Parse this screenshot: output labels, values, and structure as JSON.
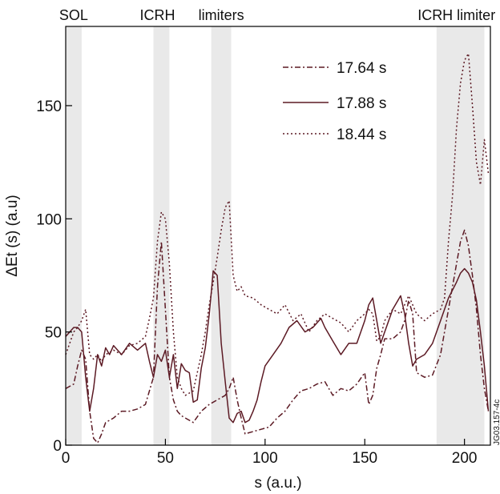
{
  "chart_data": {
    "type": "line",
    "title": "",
    "xlabel": "s (a.u.)",
    "ylabel": "ΔEt (s) (a.u)",
    "xlim": [
      0,
      213
    ],
    "ylim": [
      0,
      185
    ],
    "x_ticks": [
      0,
      50,
      100,
      150,
      200
    ],
    "y_ticks": [
      0,
      50,
      100,
      150
    ],
    "grid": false,
    "legend_position": "top-right",
    "colors": {
      "line": "#5c1a24",
      "shade": "#e9e9e9",
      "axis": "#000000"
    },
    "region_labels": [
      {
        "text": "SOL",
        "x": 4
      },
      {
        "text": "ICRH",
        "x": 46
      },
      {
        "text": "limiters",
        "x": 78
      },
      {
        "text": "ICRH limiter",
        "x": 196
      }
    ],
    "shaded_regions": [
      [
        0,
        8
      ],
      [
        44,
        52
      ],
      [
        73,
        83
      ],
      [
        186,
        210
      ]
    ],
    "stamp": "JG03.157-4c",
    "series": [
      {
        "name": "17.64 s",
        "style": "dashdot",
        "x": [
          0,
          2,
          4,
          6,
          8,
          10,
          12,
          14,
          16,
          18,
          20,
          24,
          28,
          32,
          36,
          40,
          44,
          46,
          48,
          50,
          52,
          54,
          56,
          58,
          60,
          64,
          68,
          72,
          76,
          80,
          82,
          84,
          86,
          88,
          90,
          94,
          98,
          102,
          106,
          110,
          114,
          118,
          122,
          126,
          130,
          134,
          138,
          142,
          146,
          150,
          152,
          154,
          156,
          158,
          160,
          164,
          168,
          170,
          172,
          174,
          176,
          180,
          184,
          188,
          192,
          196,
          198,
          200,
          202,
          204,
          206,
          208,
          210,
          212
        ],
        "y": [
          25,
          26,
          27,
          35,
          42,
          38,
          15,
          3,
          1,
          5,
          10,
          12,
          15,
          15,
          16,
          18,
          30,
          70,
          90,
          60,
          30,
          20,
          15,
          13,
          12,
          10,
          15,
          18,
          20,
          22,
          25,
          30,
          20,
          12,
          5,
          6,
          7,
          8,
          12,
          15,
          20,
          24,
          25,
          27,
          28,
          22,
          25,
          24,
          27,
          32,
          18,
          22,
          34,
          40,
          47,
          47,
          50,
          55,
          64,
          58,
          32,
          30,
          31,
          40,
          60,
          80,
          90,
          95,
          88,
          75,
          60,
          40,
          25,
          15
        ]
      },
      {
        "name": "17.88 s",
        "style": "solid",
        "x": [
          0,
          2,
          4,
          6,
          8,
          10,
          12,
          14,
          16,
          18,
          20,
          22,
          24,
          28,
          32,
          36,
          40,
          42,
          44,
          46,
          48,
          50,
          52,
          54,
          56,
          58,
          60,
          62,
          64,
          66,
          68,
          70,
          72,
          74,
          76,
          78,
          80,
          82,
          84,
          86,
          88,
          90,
          92,
          94,
          96,
          98,
          100,
          104,
          108,
          112,
          116,
          120,
          124,
          128,
          130,
          134,
          138,
          142,
          146,
          150,
          152,
          154,
          156,
          158,
          160,
          164,
          168,
          170,
          172,
          174,
          176,
          180,
          184,
          188,
          192,
          196,
          198,
          200,
          202,
          204,
          206,
          208,
          210,
          212
        ],
        "y": [
          48,
          50,
          52,
          52,
          50,
          30,
          15,
          25,
          40,
          35,
          43,
          40,
          44,
          40,
          45,
          42,
          45,
          37,
          30,
          40,
          37,
          42,
          30,
          40,
          25,
          36,
          33,
          32,
          19,
          20,
          34,
          43,
          58,
          77,
          75,
          45,
          28,
          12,
          10,
          14,
          15,
          10,
          11,
          15,
          20,
          28,
          35,
          40,
          45,
          52,
          55,
          50,
          52,
          56,
          52,
          46,
          40,
          45,
          45,
          55,
          62,
          65,
          55,
          45,
          50,
          60,
          66,
          58,
          45,
          35,
          38,
          40,
          45,
          55,
          65,
          72,
          76,
          78,
          76,
          72,
          64,
          50,
          35,
          15
        ]
      },
      {
        "name": "18.44 s",
        "style": "dotted",
        "x": [
          0,
          2,
          4,
          6,
          8,
          10,
          12,
          14,
          16,
          18,
          20,
          24,
          28,
          32,
          36,
          40,
          42,
          44,
          46,
          48,
          50,
          52,
          54,
          56,
          58,
          60,
          64,
          68,
          70,
          72,
          74,
          76,
          78,
          80,
          82,
          84,
          86,
          88,
          90,
          94,
          98,
          102,
          106,
          110,
          114,
          118,
          122,
          126,
          130,
          134,
          138,
          142,
          146,
          150,
          152,
          154,
          156,
          158,
          160,
          164,
          168,
          170,
          172,
          174,
          176,
          180,
          184,
          188,
          190,
          192,
          194,
          196,
          198,
          200,
          202,
          204,
          206,
          208,
          210,
          212
        ],
        "y": [
          40,
          45,
          50,
          52,
          55,
          60,
          40,
          38,
          40,
          37,
          40,
          42,
          40,
          44,
          45,
          48,
          56,
          65,
          90,
          103,
          100,
          80,
          50,
          30,
          25,
          22,
          24,
          40,
          50,
          62,
          72,
          83,
          95,
          105,
          108,
          75,
          68,
          70,
          66,
          65,
          62,
          60,
          58,
          62,
          55,
          58,
          50,
          55,
          58,
          56,
          54,
          50,
          55,
          58,
          60,
          58,
          46,
          48,
          55,
          60,
          58,
          62,
          66,
          62,
          58,
          55,
          58,
          60,
          65,
          90,
          110,
          140,
          160,
          170,
          173,
          150,
          125,
          115,
          135,
          120
        ]
      }
    ]
  }
}
